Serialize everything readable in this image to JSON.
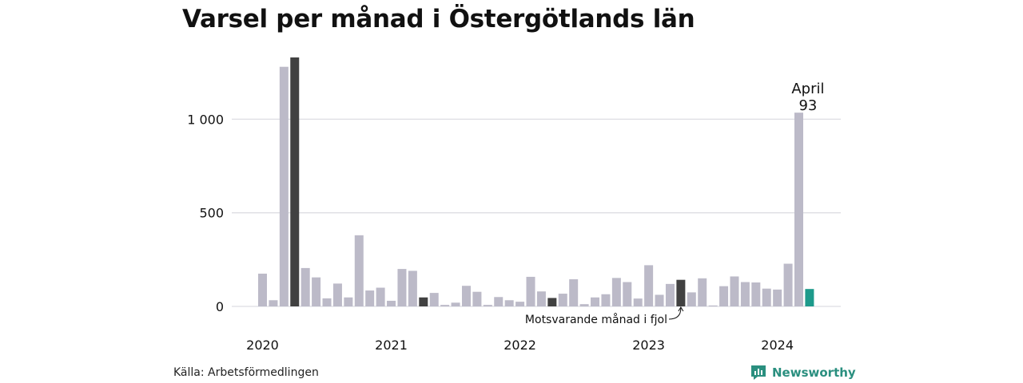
{
  "title": "Varsel per månad i Östergötlands län",
  "source": "Källa: Arbetsförmedlingen",
  "brand": "Newsworthy",
  "colors": {
    "default": "#bcbac8",
    "same_month_last_year": "#414141",
    "current": "#1d9a8b",
    "grid": "#dddde3",
    "brand": "#2a8f7f"
  },
  "chart_data": {
    "type": "bar",
    "ylim": [
      0,
      1350
    ],
    "y_ticks": [
      {
        "value": 0,
        "label": "0"
      },
      {
        "value": 500,
        "label": "500"
      },
      {
        "value": 1000,
        "label": "1 000"
      }
    ],
    "year_labels": [
      {
        "label": "2020",
        "index": 0
      },
      {
        "label": "2021",
        "index": 12
      },
      {
        "label": "2022",
        "index": 24
      },
      {
        "label": "2023",
        "index": 36
      },
      {
        "label": "2024",
        "index": 48
      }
    ],
    "series": [
      {
        "values": [
          175,
          33,
          1280,
          1330,
          205,
          155,
          43,
          122,
          48,
          380,
          85,
          100,
          30,
          200,
          190,
          48,
          72,
          8,
          20,
          110,
          78,
          8,
          50,
          33,
          25,
          158,
          80,
          45,
          68,
          145,
          12,
          48,
          65,
          152,
          130,
          42,
          220,
          62,
          120,
          142,
          75,
          150,
          5,
          108,
          160,
          130,
          128,
          95,
          90,
          228,
          1035,
          93
        ],
        "highlight": {
          "3": "same_month_last_year",
          "15": "same_month_last_year",
          "27": "same_month_last_year",
          "39": "same_month_last_year",
          "51": "current"
        }
      }
    ],
    "annotations": {
      "current": {
        "index": 51,
        "line1": "April",
        "line2": "93"
      },
      "last_year": {
        "index": 39,
        "text": "Motsvarande månad i fjol"
      }
    }
  }
}
